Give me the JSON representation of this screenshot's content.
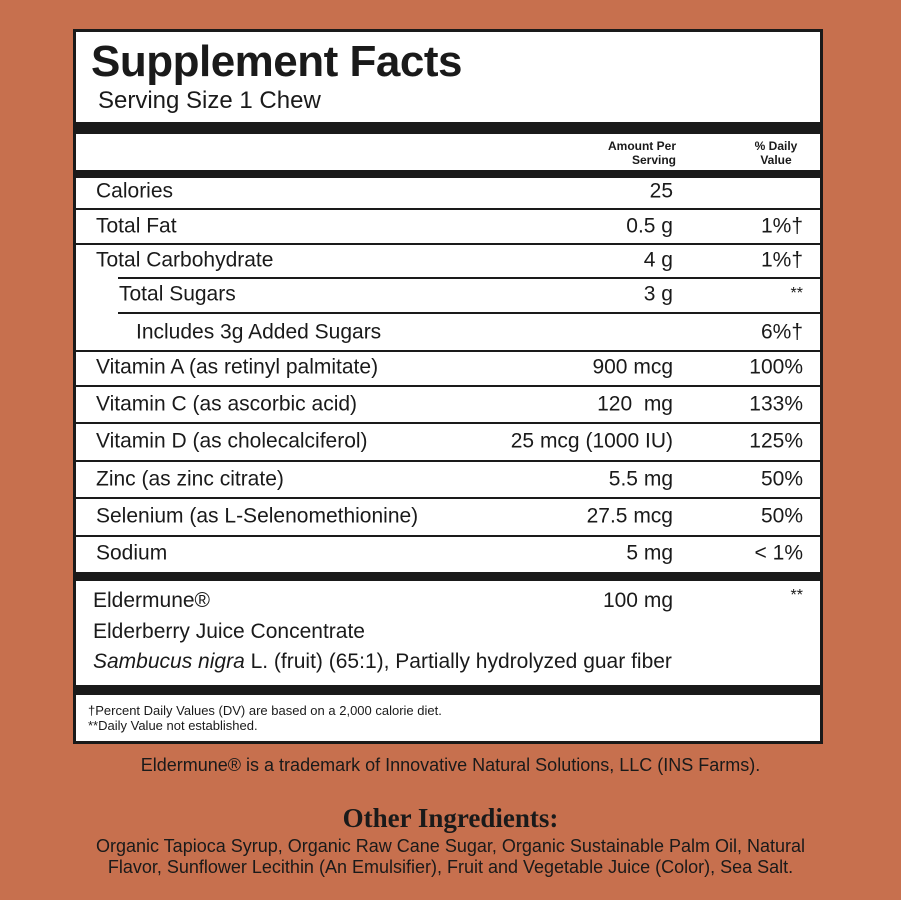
{
  "title": "Supplement Facts",
  "serving_size": "Serving Size 1 Chew",
  "headers": {
    "amount": "Amount Per Serving",
    "daily_value": "% Daily Value"
  },
  "rows": [
    {
      "name": "Calories",
      "amount": "25",
      "dv": ""
    },
    {
      "name": "Total Fat",
      "amount": "0.5 g",
      "dv": "1%†"
    },
    {
      "name": "Total Carbohydrate",
      "amount": "4 g",
      "dv": "1%†"
    },
    {
      "name": "Total Sugars",
      "amount": "3 g",
      "dv": "**"
    },
    {
      "name": "Includes 3g Added Sugars",
      "amount": "",
      "dv": "6%†"
    },
    {
      "name": "Vitamin A (as retinyl palmitate)",
      "amount": "900 mcg",
      "dv": "100%"
    },
    {
      "name": "Vitamin C (as ascorbic acid)",
      "amount": "120  mg",
      "dv": "133%"
    },
    {
      "name": "Vitamin D (as cholecalciferol)",
      "amount": "25 mcg (1000 IU)",
      "dv": "125%"
    },
    {
      "name": "Zinc (as zinc citrate)",
      "amount": "5.5 mg",
      "dv": "50%"
    },
    {
      "name": "Selenium (as L-Selenomethionine)",
      "amount": "27.5 mcg",
      "dv": "50%"
    },
    {
      "name": "Sodium",
      "amount": "5 mg",
      "dv": "< 1%"
    }
  ],
  "blend": {
    "name": "Eldermune®",
    "amount": "100 mg",
    "dv": "**",
    "line2": "Elderberry Juice Concentrate",
    "line3_italic": "Sambucus nigra",
    "line3_rest": " L. (fruit) (65:1), Partially hydrolyzed guar fiber"
  },
  "footnotes": [
    "†Percent Daily Values (DV) are based on a 2,000 calorie diet.",
    "**Daily Value not established."
  ],
  "trademark": "Eldermune® is a trademark of Innovative Natural Solutions, LLC (INS Farms).",
  "other_ingredients": {
    "heading": "Other Ingredients:",
    "lines": [
      "Organic Tapioca Syrup, Organic Raw Cane Sugar, Organic Sustainable Palm Oil, Natural",
      "Flavor, Sunflower Lecithin (An Emulsifier), Fruit and Vegetable Juice (Color), Sea Salt."
    ]
  }
}
